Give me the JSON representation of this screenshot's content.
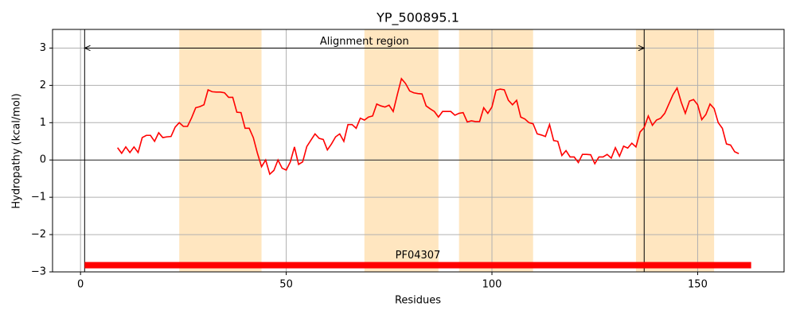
{
  "chart_data": {
    "type": "line",
    "title": "YP_500895.1",
    "xlabel": "Residues",
    "ylabel": "Hydropathy (kcal/mol)",
    "xlim": [
      -6.8,
      171
    ],
    "ylim": [
      -3,
      3.5
    ],
    "xticks": [
      0,
      50,
      100,
      150
    ],
    "yticks": [
      {
        "value": -3,
        "label": "−3"
      },
      {
        "value": -2,
        "label": "−2"
      },
      {
        "value": -1,
        "label": "−1"
      },
      0,
      1,
      2,
      3
    ],
    "grid": true,
    "hline": 0,
    "regions": [
      {
        "start": 24,
        "end": 44
      },
      {
        "start": 69,
        "end": 87
      },
      {
        "start": 92,
        "end": 110
      },
      {
        "start": 135,
        "end": 154
      }
    ],
    "region_color": "#ffe6c0",
    "vlines": [
      1,
      137
    ],
    "annotation": {
      "text": "Alignment region",
      "start": 1,
      "end": 137,
      "y": 3
    },
    "domain": {
      "label": "PF04307",
      "start": 1,
      "end": 163,
      "y": -2.82,
      "color": "#ff0000"
    },
    "color": "#ff0000",
    "x": [
      9,
      10,
      11,
      12,
      13,
      14,
      15,
      16,
      17,
      18,
      19,
      20,
      21,
      22,
      23,
      24,
      25,
      26,
      27,
      28,
      29,
      30,
      31,
      32,
      33,
      34,
      35,
      36,
      37,
      38,
      39,
      40,
      41,
      42,
      43,
      44,
      45,
      46,
      47,
      48,
      49,
      50,
      51,
      52,
      53,
      54,
      55,
      56,
      57,
      58,
      59,
      60,
      61,
      62,
      63,
      64,
      65,
      66,
      67,
      68,
      69,
      70,
      71,
      72,
      73,
      74,
      75,
      76,
      77,
      78,
      79,
      80,
      81,
      82,
      83,
      84,
      85,
      86,
      87,
      88,
      89,
      90,
      91,
      92,
      93,
      94,
      95,
      96,
      97,
      98,
      99,
      100,
      101,
      102,
      103,
      104,
      105,
      106,
      107,
      108,
      109,
      110,
      111,
      112,
      113,
      114,
      115,
      116,
      117,
      118,
      119,
      120,
      121,
      122,
      123,
      124,
      125,
      126,
      127,
      128,
      129,
      130,
      131,
      132,
      133,
      134,
      135,
      136,
      137,
      138,
      139,
      140,
      141,
      142,
      143,
      144,
      145,
      146,
      147,
      148,
      149,
      150,
      151,
      152,
      153,
      154,
      155,
      156,
      157,
      158,
      159,
      160
    ],
    "values": [
      0.33,
      0.18,
      0.35,
      0.2,
      0.35,
      0.2,
      0.6,
      0.66,
      0.66,
      0.5,
      0.73,
      0.6,
      0.62,
      0.63,
      0.88,
      1.0,
      0.9,
      0.9,
      1.13,
      1.4,
      1.43,
      1.48,
      1.88,
      1.83,
      1.82,
      1.82,
      1.8,
      1.68,
      1.68,
      1.28,
      1.27,
      0.85,
      0.85,
      0.6,
      0.18,
      -0.18,
      0.0,
      -0.38,
      -0.28,
      0.0,
      -0.22,
      -0.27,
      -0.05,
      0.35,
      -0.12,
      -0.05,
      0.36,
      0.53,
      0.7,
      0.58,
      0.55,
      0.27,
      0.43,
      0.62,
      0.7,
      0.5,
      0.95,
      0.95,
      0.85,
      1.12,
      1.07,
      1.15,
      1.18,
      1.5,
      1.45,
      1.42,
      1.47,
      1.3,
      1.75,
      2.18,
      2.05,
      1.85,
      1.8,
      1.78,
      1.77,
      1.45,
      1.37,
      1.3,
      1.15,
      1.3,
      1.3,
      1.3,
      1.2,
      1.25,
      1.27,
      1.02,
      1.05,
      1.03,
      1.03,
      1.4,
      1.25,
      1.42,
      1.87,
      1.9,
      1.88,
      1.6,
      1.48,
      1.6,
      1.15,
      1.1,
      1.0,
      0.97,
      0.7,
      0.67,
      0.63,
      0.95,
      0.52,
      0.5,
      0.12,
      0.25,
      0.08,
      0.08,
      -0.07,
      0.15,
      0.15,
      0.14,
      -0.1,
      0.08,
      0.08,
      0.15,
      0.05,
      0.33,
      0.1,
      0.37,
      0.32,
      0.45,
      0.35,
      0.75,
      0.87,
      1.18,
      0.93,
      1.07,
      1.12,
      1.25,
      1.5,
      1.75,
      1.93,
      1.55,
      1.25,
      1.58,
      1.62,
      1.48,
      1.08,
      1.22,
      1.5,
      1.38,
      1.0,
      0.85,
      0.43,
      0.4,
      0.22,
      0.17
    ]
  }
}
